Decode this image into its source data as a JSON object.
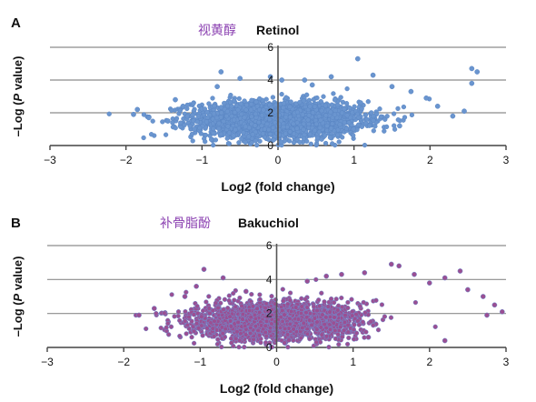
{
  "chart_data": [
    {
      "type": "scatter",
      "panel_label": "A",
      "title_cn": "视黄醇",
      "title_en": "Retinol",
      "xlabel": "Log2 (fold change)",
      "ylabel_prefix": "–Log (",
      "ylabel_italic": "P",
      "ylabel_suffix": " value)",
      "xlim": [
        -3,
        3
      ],
      "ylim": [
        0,
        6
      ],
      "xticks": [
        "−3",
        "−2",
        "−1",
        "0",
        "1",
        "2",
        "3"
      ],
      "yticks": [
        "0",
        "2",
        "4",
        "6"
      ],
      "grid": "horizontal",
      "point_color": "#6a95cf",
      "point_stroke": "#5a86c4",
      "point_count": 2600,
      "outliers": [
        {
          "x": -1.9,
          "y": 1.9
        },
        {
          "x": -1.85,
          "y": 2.2
        },
        {
          "x": -1.7,
          "y": 1.7
        },
        {
          "x": -1.45,
          "y": 1.5
        },
        {
          "x": -1.35,
          "y": 2.8
        },
        {
          "x": -1.25,
          "y": 2.4
        },
        {
          "x": -0.8,
          "y": 3.6
        },
        {
          "x": -0.75,
          "y": 4.5
        },
        {
          "x": -0.5,
          "y": 4.1
        },
        {
          "x": -0.1,
          "y": 4.2
        },
        {
          "x": 0.05,
          "y": 4.0
        },
        {
          "x": 0.35,
          "y": 4.0
        },
        {
          "x": 0.45,
          "y": 3.7
        },
        {
          "x": 0.7,
          "y": 4.2
        },
        {
          "x": 1.05,
          "y": 5.3
        },
        {
          "x": 1.25,
          "y": 4.3
        },
        {
          "x": 1.5,
          "y": 3.6
        },
        {
          "x": 1.75,
          "y": 3.3
        },
        {
          "x": 1.95,
          "y": 2.9
        },
        {
          "x": 2.1,
          "y": 2.4
        },
        {
          "x": 2.3,
          "y": 1.8
        },
        {
          "x": 2.45,
          "y": 2.1
        },
        {
          "x": 2.55,
          "y": 4.7
        },
        {
          "x": 2.62,
          "y": 4.5
        },
        {
          "x": 2.55,
          "y": 3.8
        },
        {
          "x": 1.6,
          "y": 1.2
        },
        {
          "x": -1.1,
          "y": 1.0
        }
      ]
    },
    {
      "type": "scatter",
      "panel_label": "B",
      "title_cn": "补骨脂酚",
      "title_en": "Bakuchiol",
      "xlabel": "Log2 (fold change)",
      "ylabel_prefix": "–Log (",
      "ylabel_italic": "P",
      "ylabel_suffix": " value)",
      "xlim": [
        -3,
        3
      ],
      "ylim": [
        0,
        6
      ],
      "xticks": [
        "−3",
        "−2",
        "−1",
        "0",
        "1",
        "2",
        "3"
      ],
      "yticks": [
        "0",
        "2",
        "4",
        "6"
      ],
      "grid": "horizontal",
      "point_color": "#9a4f93",
      "point_stroke": "#6f8fd0",
      "point_count": 2300,
      "outliers": [
        {
          "x": -1.8,
          "y": 1.9
        },
        {
          "x": -1.6,
          "y": 2.3
        },
        {
          "x": -1.2,
          "y": 3.0
        },
        {
          "x": -1.05,
          "y": 3.6
        },
        {
          "x": -0.95,
          "y": 4.6
        },
        {
          "x": -0.7,
          "y": 4.1
        },
        {
          "x": -0.4,
          "y": 3.3
        },
        {
          "x": 0.4,
          "y": 3.9
        },
        {
          "x": 0.65,
          "y": 4.2
        },
        {
          "x": 0.85,
          "y": 4.3
        },
        {
          "x": 1.15,
          "y": 4.4
        },
        {
          "x": 1.5,
          "y": 4.9
        },
        {
          "x": 1.6,
          "y": 4.8
        },
        {
          "x": 1.8,
          "y": 4.3
        },
        {
          "x": 2.0,
          "y": 3.8
        },
        {
          "x": 2.2,
          "y": 4.1
        },
        {
          "x": 2.4,
          "y": 4.5
        },
        {
          "x": 2.5,
          "y": 3.4
        },
        {
          "x": 2.7,
          "y": 3.0
        },
        {
          "x": 2.85,
          "y": 2.5
        },
        {
          "x": 2.95,
          "y": 2.1
        },
        {
          "x": 2.75,
          "y": 1.9
        },
        {
          "x": 2.2,
          "y": 0.4
        },
        {
          "x": 1.2,
          "y": 0.6
        }
      ]
    }
  ]
}
